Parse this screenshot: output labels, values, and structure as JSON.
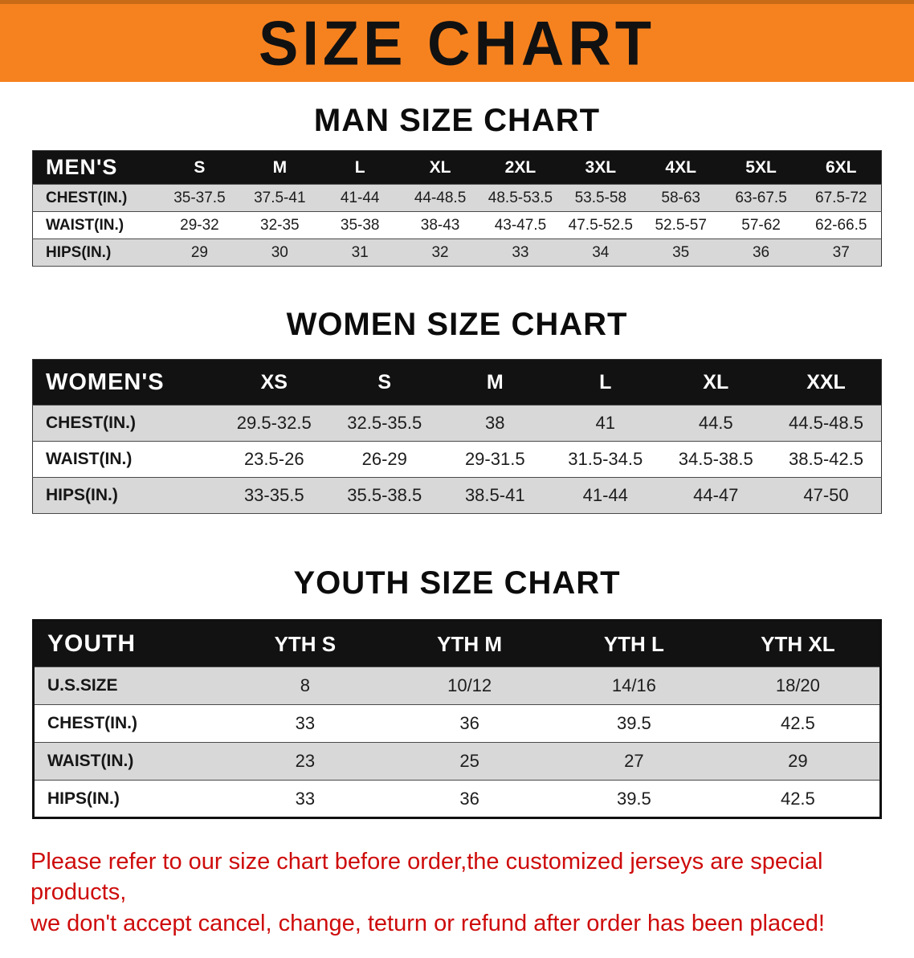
{
  "banner": {
    "title": "SIZE CHART"
  },
  "colors": {
    "banner_bg": "#F6821F",
    "title_text": "#111111",
    "table_header_bg": "#121212",
    "table_header_text": "#FFFFFF",
    "row_stripe": "#D8D8D8",
    "disclaimer_text": "#CE0B0B"
  },
  "sections": [
    {
      "heading": "MAN SIZE CHART",
      "table": {
        "header": [
          "MEN'S",
          "S",
          "M",
          "L",
          "XL",
          "2XL",
          "3XL",
          "4XL",
          "5XL",
          "6XL"
        ],
        "rows": [
          [
            "CHEST(IN.)",
            "35-37.5",
            "37.5-41",
            "41-44",
            "44-48.5",
            "48.5-53.5",
            "53.5-58",
            "58-63",
            "63-67.5",
            "67.5-72"
          ],
          [
            "WAIST(IN.)",
            "29-32",
            "32-35",
            "35-38",
            "38-43",
            "43-47.5",
            "47.5-52.5",
            "52.5-57",
            "57-62",
            "62-66.5"
          ],
          [
            "HIPS(IN.)",
            "29",
            "30",
            "31",
            "32",
            "33",
            "34",
            "35",
            "36",
            "37"
          ]
        ]
      }
    },
    {
      "heading": "WOMEN SIZE CHART",
      "table": {
        "header": [
          "WOMEN'S",
          "XS",
          "S",
          "M",
          "L",
          "XL",
          "XXL"
        ],
        "rows": [
          [
            "CHEST(IN.)",
            "29.5-32.5",
            "32.5-35.5",
            "38",
            "41",
            "44.5",
            "44.5-48.5"
          ],
          [
            "WAIST(IN.)",
            "23.5-26",
            "26-29",
            "29-31.5",
            "31.5-34.5",
            "34.5-38.5",
            "38.5-42.5"
          ],
          [
            "HIPS(IN.)",
            "33-35.5",
            "35.5-38.5",
            "38.5-41",
            "41-44",
            "44-47",
            "47-50"
          ]
        ]
      }
    },
    {
      "heading": "YOUTH SIZE CHART",
      "table": {
        "header": [
          "YOUTH",
          "YTH S",
          "YTH M",
          "YTH L",
          "YTH XL"
        ],
        "rows": [
          [
            "U.S.SIZE",
            "8",
            "10/12",
            "14/16",
            "18/20"
          ],
          [
            "CHEST(IN.)",
            "33",
            "36",
            "39.5",
            "42.5"
          ],
          [
            "WAIST(IN.)",
            "23",
            "25",
            "27",
            "29"
          ],
          [
            "HIPS(IN.)",
            "33",
            "36",
            "39.5",
            "42.5"
          ]
        ]
      }
    }
  ],
  "disclaimer": {
    "lines": [
      "Please refer to our size chart before order,the customized jerseys are special products,",
      "we don't accept cancel, change, teturn or refund after order has been placed!"
    ]
  }
}
